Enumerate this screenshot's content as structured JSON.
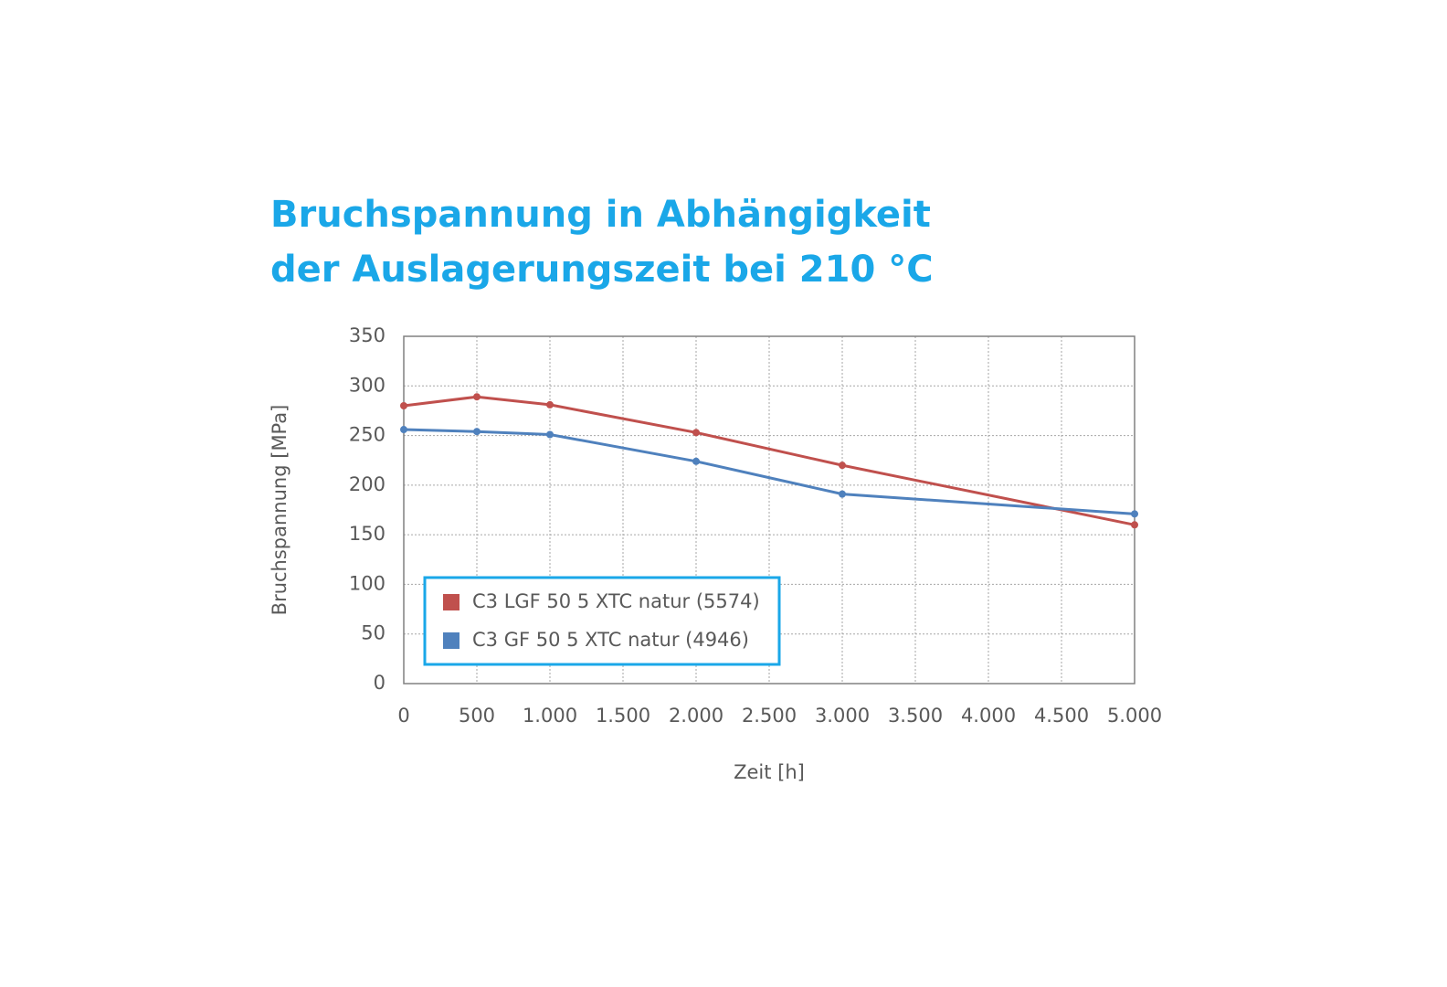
{
  "chart_data": {
    "type": "line",
    "title": [
      "Bruchspannung in Abhängigkeit",
      "der Auslagerungszeit bei 210 °C"
    ],
    "x_label": "Zeit [h]",
    "y_label": "Bruchspannung [MPa]",
    "x": [
      0,
      500,
      1000,
      2000,
      3000,
      5000
    ],
    "series": [
      {
        "name": "C3 LGF 50 5 XTC natur (5574)",
        "color": "#c0504d",
        "values": [
          280,
          289,
          281,
          253,
          220,
          160
        ]
      },
      {
        "name": "C3 GF 50 5 XTC natur (4946)",
        "color": "#4f81bd",
        "values": [
          256,
          254,
          251,
          224,
          191,
          171
        ]
      }
    ],
    "xlim": [
      0,
      5000
    ],
    "xticks": [
      0,
      500,
      {
        "value": 1000,
        "label": "1.000"
      },
      {
        "value": 1500,
        "label": "1.500"
      },
      {
        "value": 2000,
        "label": "2.000"
      },
      {
        "value": 2500,
        "label": "2.500"
      },
      {
        "value": 3000,
        "label": "3.000"
      },
      {
        "value": 3500,
        "label": "3.500"
      },
      {
        "value": 4000,
        "label": "4.000"
      },
      {
        "value": 4500,
        "label": "4.500"
      },
      {
        "value": 5000,
        "label": "5.000"
      }
    ],
    "ylim": [
      0,
      350
    ],
    "yticks": [
      0,
      50,
      100,
      150,
      200,
      250,
      300,
      350
    ],
    "grid": true,
    "legend": "lower-left"
  }
}
